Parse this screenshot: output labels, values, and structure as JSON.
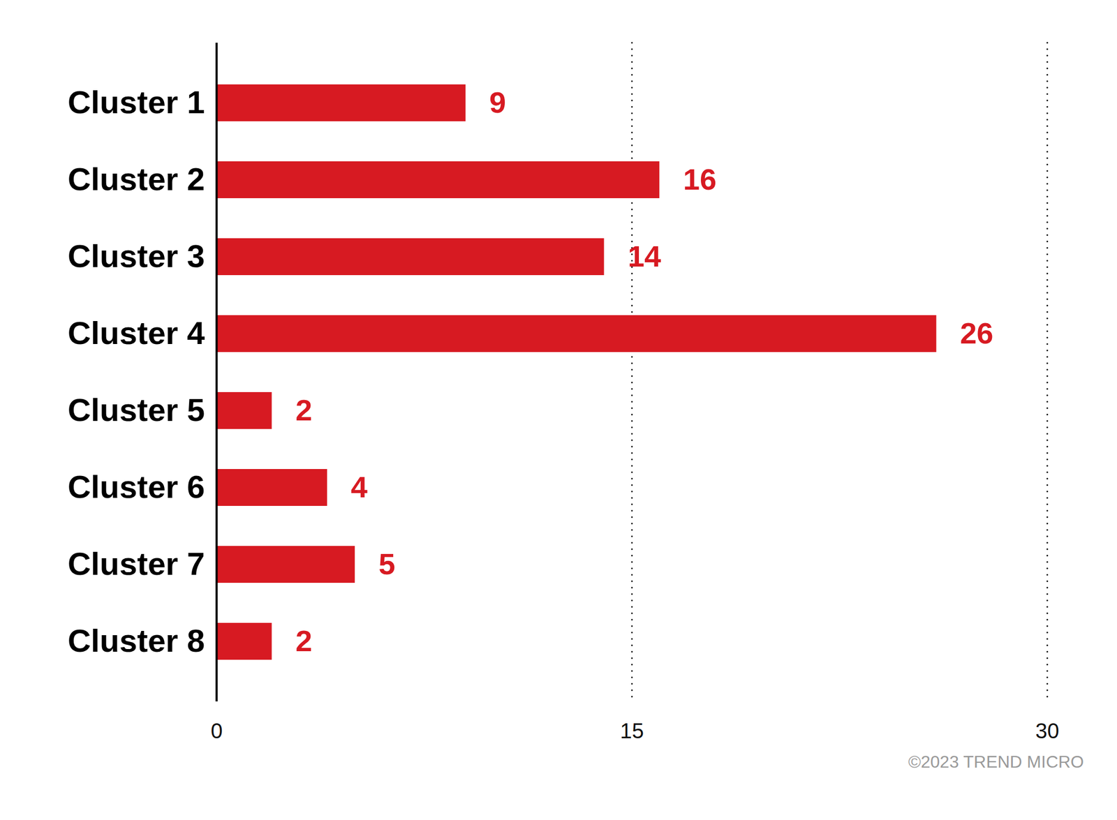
{
  "chart_data": {
    "type": "bar",
    "orientation": "horizontal",
    "categories": [
      "Cluster 1",
      "Cluster 2",
      "Cluster 3",
      "Cluster 4",
      "Cluster 5",
      "Cluster 6",
      "Cluster 7",
      "Cluster 8"
    ],
    "values": [
      9,
      16,
      14,
      26,
      2,
      4,
      5,
      2
    ],
    "color": "#d71a22",
    "xlim": [
      0,
      30
    ],
    "xticks": [
      0,
      15,
      30
    ],
    "grid": true,
    "data_labels": true,
    "caption": "©2023 TREND MICRO"
  }
}
